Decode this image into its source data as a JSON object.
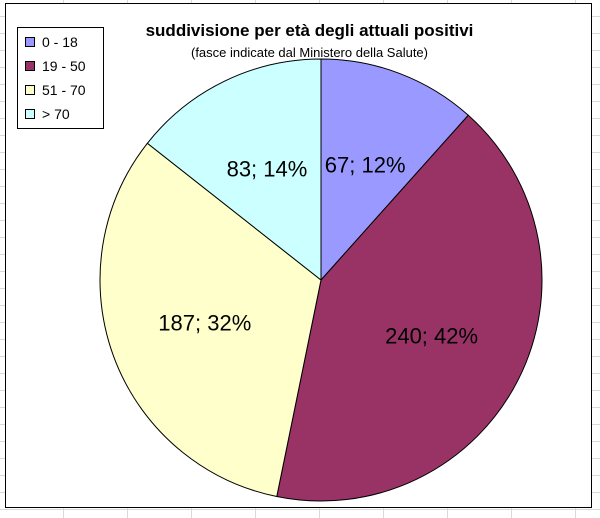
{
  "chart_data": {
    "type": "pie",
    "title": "suddivisione per età degli attuali positivi",
    "subtitle": "(fasce indicate dal Ministero della Salute)",
    "categories": [
      "0 - 18",
      "19 - 50",
      "51 - 70",
      "> 70"
    ],
    "values": [
      67,
      240,
      187,
      83
    ],
    "percent_labels": [
      "12%",
      "42%",
      "32%",
      "14%"
    ],
    "data_labels": [
      "67; 12%",
      "240; 42%",
      "187; 32%",
      "83; 14%"
    ],
    "colors": [
      "#9999FF",
      "#993366",
      "#FFFFCC",
      "#CCFFFF"
    ],
    "legend_position": "top-left",
    "start_angle": "12 o'clock",
    "direction": "clockwise"
  }
}
